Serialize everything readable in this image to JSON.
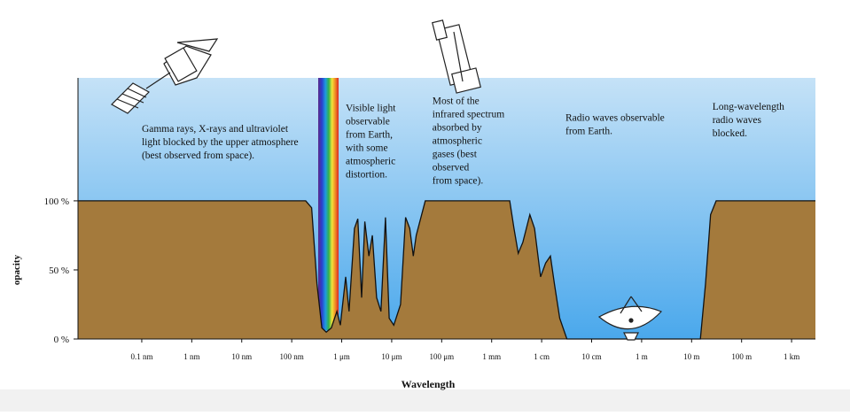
{
  "chart_data": {
    "type": "area",
    "x_label": "Wavelength",
    "y_label": "opacity",
    "xlog": true,
    "xlim": [
      5.3e-12,
      3000
    ],
    "xticks": [
      {
        "value": 1e-10,
        "label": "0.1 nm"
      },
      {
        "value": 1e-09,
        "label": "1 nm"
      },
      {
        "value": 1e-08,
        "label": "10 nm"
      },
      {
        "value": 1e-07,
        "label": "100 nm"
      },
      {
        "value": 1e-06,
        "label": "1 μm"
      },
      {
        "value": 1e-05,
        "label": "10 μm"
      },
      {
        "value": 0.0001,
        "label": "100 μm"
      },
      {
        "value": 0.001,
        "label": "1 mm"
      },
      {
        "value": 0.01,
        "label": "1 cm"
      },
      {
        "value": 0.1,
        "label": "10 cm"
      },
      {
        "value": 1,
        "label": "1 m"
      },
      {
        "value": 10,
        "label": "10 m"
      },
      {
        "value": 100,
        "label": "100 m"
      },
      {
        "value": 1000,
        "label": "1 km"
      }
    ],
    "ylim": [
      0,
      189
    ],
    "yticks": [
      {
        "value": 0,
        "label": "0 %"
      },
      {
        "value": 50,
        "label": "50 %"
      },
      {
        "value": 100,
        "label": "100 %"
      }
    ],
    "color": "#a47a3c",
    "sky_color": "#4aa8ec",
    "x": [
      5.3e-12,
      1.9e-07,
      2.5e-07,
      3.2e-07,
      4e-07,
      4.9e-07,
      6.2e-07,
      8e-07,
      9.4e-07,
      1.2e-06,
      1.4e-06,
      1.8e-06,
      2.1e-06,
      2.5e-06,
      2.9e-06,
      3.5e-06,
      4.1e-06,
      5e-06,
      6.1e-06,
      7.5e-06,
      8.9e-06,
      1.1e-05,
      1.5e-05,
      1.9e-05,
      2.3e-05,
      2.7e-05,
      3.1e-05,
      4.7e-05,
      0.0023,
      0.0028,
      0.0034,
      0.0042,
      0.0058,
      0.0072,
      0.0095,
      0.012,
      0.015,
      0.018,
      0.023,
      0.032,
      15,
      19,
      24,
      31,
      3000
    ],
    "values": [
      100,
      100,
      95,
      40,
      8,
      5,
      8,
      20,
      10,
      45,
      20,
      80,
      87,
      30,
      85,
      60,
      75,
      30,
      20,
      88,
      15,
      10,
      25,
      88,
      80,
      60,
      75,
      100,
      100,
      80,
      62,
      70,
      90,
      80,
      45,
      55,
      60,
      40,
      15,
      0,
      0,
      40,
      90,
      100,
      100
    ],
    "annotations": [
      {
        "lines": [
          "Gamma rays, X-rays and ultraviolet",
          "light blocked by the upper atmosphere",
          "(best observed from space)."
        ],
        "x": 1e-10,
        "y": 150
      },
      {
        "lines": [
          "Visible light",
          "observable",
          "from Earth,",
          "with some",
          "atmospheric",
          "distortion."
        ],
        "x": 1.2e-06,
        "y": 165
      },
      {
        "lines": [
          "Most of the",
          "infrared spectrum",
          "absorbed by",
          "atmospheric",
          "gases (best",
          "observed",
          "from space)."
        ],
        "x": 6.5e-05,
        "y": 170
      },
      {
        "lines": [
          "Radio waves observable",
          "from Earth."
        ],
        "x": 0.03,
        "y": 158
      },
      {
        "lines": [
          "Long-wavelength",
          "radio waves",
          "blocked."
        ],
        "x": 26,
        "y": 166
      }
    ]
  }
}
